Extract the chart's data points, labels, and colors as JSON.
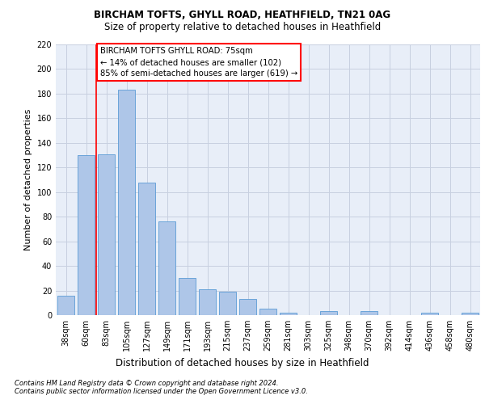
{
  "title1": "BIRCHAM TOFTS, GHYLL ROAD, HEATHFIELD, TN21 0AG",
  "title2": "Size of property relative to detached houses in Heathfield",
  "xlabel": "Distribution of detached houses by size in Heathfield",
  "ylabel": "Number of detached properties",
  "categories": [
    "38sqm",
    "60sqm",
    "83sqm",
    "105sqm",
    "127sqm",
    "149sqm",
    "171sqm",
    "193sqm",
    "215sqm",
    "237sqm",
    "259sqm",
    "281sqm",
    "303sqm",
    "325sqm",
    "348sqm",
    "370sqm",
    "392sqm",
    "414sqm",
    "436sqm",
    "458sqm",
    "480sqm"
  ],
  "values": [
    16,
    130,
    131,
    183,
    108,
    76,
    30,
    21,
    19,
    13,
    5,
    2,
    0,
    3,
    0,
    3,
    0,
    0,
    2,
    0,
    2
  ],
  "bar_color": "#aec6e8",
  "bar_edge_color": "#5b9bd5",
  "annotation_text": "BIRCHAM TOFTS GHYLL ROAD: 75sqm\n← 14% of detached houses are smaller (102)\n85% of semi-detached houses are larger (619) →",
  "vline_x": 1.5,
  "footnote1": "Contains HM Land Registry data © Crown copyright and database right 2024.",
  "footnote2": "Contains public sector information licensed under the Open Government Licence v3.0.",
  "ylim": [
    0,
    220
  ],
  "yticks": [
    0,
    20,
    40,
    60,
    80,
    100,
    120,
    140,
    160,
    180,
    200,
    220
  ],
  "background_color": "#e8eef8",
  "grid_color": "#c8d0e0"
}
